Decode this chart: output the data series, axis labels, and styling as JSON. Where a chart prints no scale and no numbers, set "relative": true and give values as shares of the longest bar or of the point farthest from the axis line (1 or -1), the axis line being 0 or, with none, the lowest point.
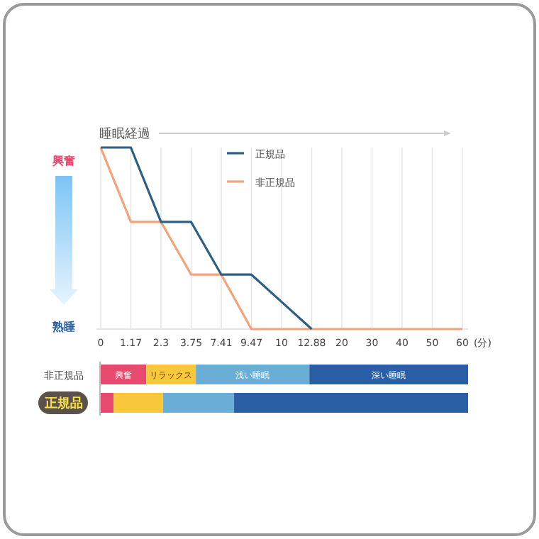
{
  "chart_data": [
    {
      "type": "line",
      "title": "睡眠経過",
      "xlabel": "(分)",
      "relative": true,
      "categories": [
        "0",
        "1.17",
        "2.3",
        "3.75",
        "7.41",
        "9.47",
        "10",
        "12.88",
        "20",
        "30",
        "40",
        "50",
        "60"
      ],
      "series": [
        {
          "name": "正規品",
          "color": "#2c5f86",
          "values": [
            1,
            1,
            0.59,
            0.59,
            0.3,
            0.3,
            0.15,
            0,
            null,
            null,
            null,
            null,
            null
          ]
        },
        {
          "name": "非正規品",
          "color": "#f4a27a",
          "values": [
            1,
            0.59,
            0.59,
            0.3,
            0.3,
            0,
            0,
            0,
            0,
            0,
            0,
            0,
            0
          ]
        }
      ],
      "annotations": [
        "興奮",
        "熟睡"
      ],
      "grid": "x",
      "legend": "top",
      "marker": "none",
      "line_style": "solid"
    },
    {
      "type": "bar",
      "orientation": "horizontal",
      "stacked": true,
      "relative": true,
      "categories": [
        "非正規品",
        "正規品"
      ],
      "series": [
        {
          "name": "興奮",
          "color": "#e8496f",
          "values": [
            0.124,
            0.035
          ]
        },
        {
          "name": "リラックス",
          "color": "#f9c83a",
          "values": [
            0.135,
            0.135
          ]
        },
        {
          "name": "浅い睡眠",
          "color": "#6aaed6",
          "values": [
            0.309,
            0.193
          ]
        },
        {
          "name": "深い睡眠",
          "color": "#2a5fa5",
          "values": [
            0.432,
            0.637
          ]
        }
      ]
    }
  ]
}
